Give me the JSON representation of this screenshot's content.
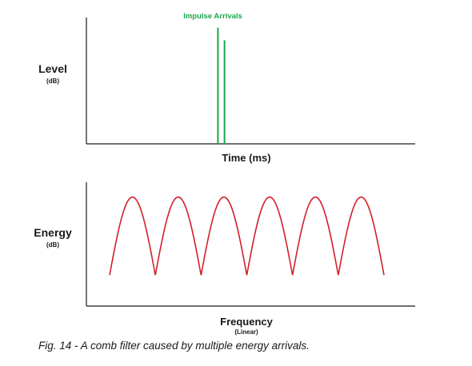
{
  "chart_data": [
    {
      "type": "impulse",
      "xlabel": "Time (ms)",
      "ylabel": "Level",
      "ylabel_unit": "(dB)",
      "annotation": "Impulse Arrivals",
      "series_color": "#1aa64b",
      "impulses": [
        {
          "x": 0.4,
          "height": 0.92
        },
        {
          "x": 0.42,
          "height": 0.82
        }
      ],
      "grid": false
    },
    {
      "type": "line",
      "xlabel": "Frequency",
      "xlabel_unit": "(Linear)",
      "ylabel": "Energy",
      "ylabel_unit": "(dB)",
      "series_color": "#d4202a",
      "lobes": 6,
      "peak_level": 0.88,
      "notch_level": 0.25,
      "grid": false
    }
  ],
  "caption": "Fig. 14 - A comb filter caused by multiple energy arrivals.",
  "colors": {
    "axis": "#1a1a1a",
    "impulse": "#1aa64b",
    "comb": "#d4202a"
  }
}
